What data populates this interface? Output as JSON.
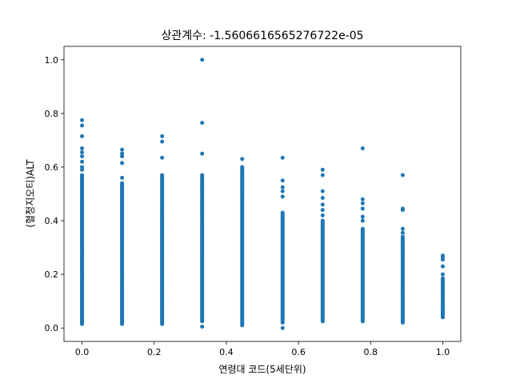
{
  "colors": {
    "series": "#1f77b4",
    "axes": "#000000",
    "background": "#ffffff"
  },
  "chart_data": {
    "type": "scatter",
    "title": "상관계수: -1.5606616565276722e-05",
    "xlabel": "연령대 코드(5세단위)",
    "ylabel": "(혈청지오티)ALT",
    "xlim": [
      -0.05,
      1.05
    ],
    "ylim": [
      -0.05,
      1.05
    ],
    "grid": false,
    "legend": "none",
    "xticks": [
      0.0,
      0.2,
      0.4,
      0.6,
      0.8,
      1.0
    ],
    "xtick_labels": [
      "0.0",
      "0.2",
      "0.4",
      "0.6",
      "0.8",
      "1.0"
    ],
    "yticks": [
      0.0,
      0.2,
      0.4,
      0.6,
      0.8,
      1.0
    ],
    "ytick_labels": [
      "0.0",
      "0.2",
      "0.4",
      "0.6",
      "0.8",
      "1.0"
    ],
    "series": [
      {
        "groups": [
          {
            "x": 0.0,
            "dense_range": [
              0.015,
              0.57
            ],
            "outliers": [
              0.59,
              0.6,
              0.62,
              0.64,
              0.655,
              0.67,
              0.715,
              0.755,
              0.775
            ]
          },
          {
            "x": 0.111,
            "dense_range": [
              0.015,
              0.54
            ],
            "outliers": [
              0.56,
              0.615,
              0.64,
              0.65,
              0.665
            ]
          },
          {
            "x": 0.222,
            "dense_range": [
              0.015,
              0.57
            ],
            "outliers": [
              0.635,
              0.695,
              0.715
            ]
          },
          {
            "x": 0.333,
            "dense_range": [
              0.025,
              0.57
            ],
            "outliers": [
              0.005,
              0.65,
              0.765,
              1.0
            ]
          },
          {
            "x": 0.444,
            "dense_range": [
              0.01,
              0.6
            ],
            "outliers": [
              0.63
            ]
          },
          {
            "x": 0.556,
            "dense_range": [
              0.02,
              0.43
            ],
            "outliers": [
              0.0,
              0.49,
              0.51,
              0.525,
              0.55,
              0.635
            ]
          },
          {
            "x": 0.667,
            "dense_range": [
              0.025,
              0.4
            ],
            "outliers": [
              0.42,
              0.44,
              0.46,
              0.485,
              0.51,
              0.57,
              0.59
            ]
          },
          {
            "x": 0.778,
            "dense_range": [
              0.025,
              0.37
            ],
            "outliers": [
              0.4,
              0.415,
              0.445,
              0.465,
              0.48,
              0.67
            ]
          },
          {
            "x": 0.889,
            "dense_range": [
              0.02,
              0.34
            ],
            "outliers": [
              0.355,
              0.37,
              0.44,
              0.445,
              0.57
            ]
          },
          {
            "x": 1.0,
            "dense_range": [
              0.04,
              0.185
            ],
            "outliers": [
              0.2,
              0.23,
              0.255,
              0.265,
              0.27
            ]
          }
        ]
      }
    ]
  }
}
